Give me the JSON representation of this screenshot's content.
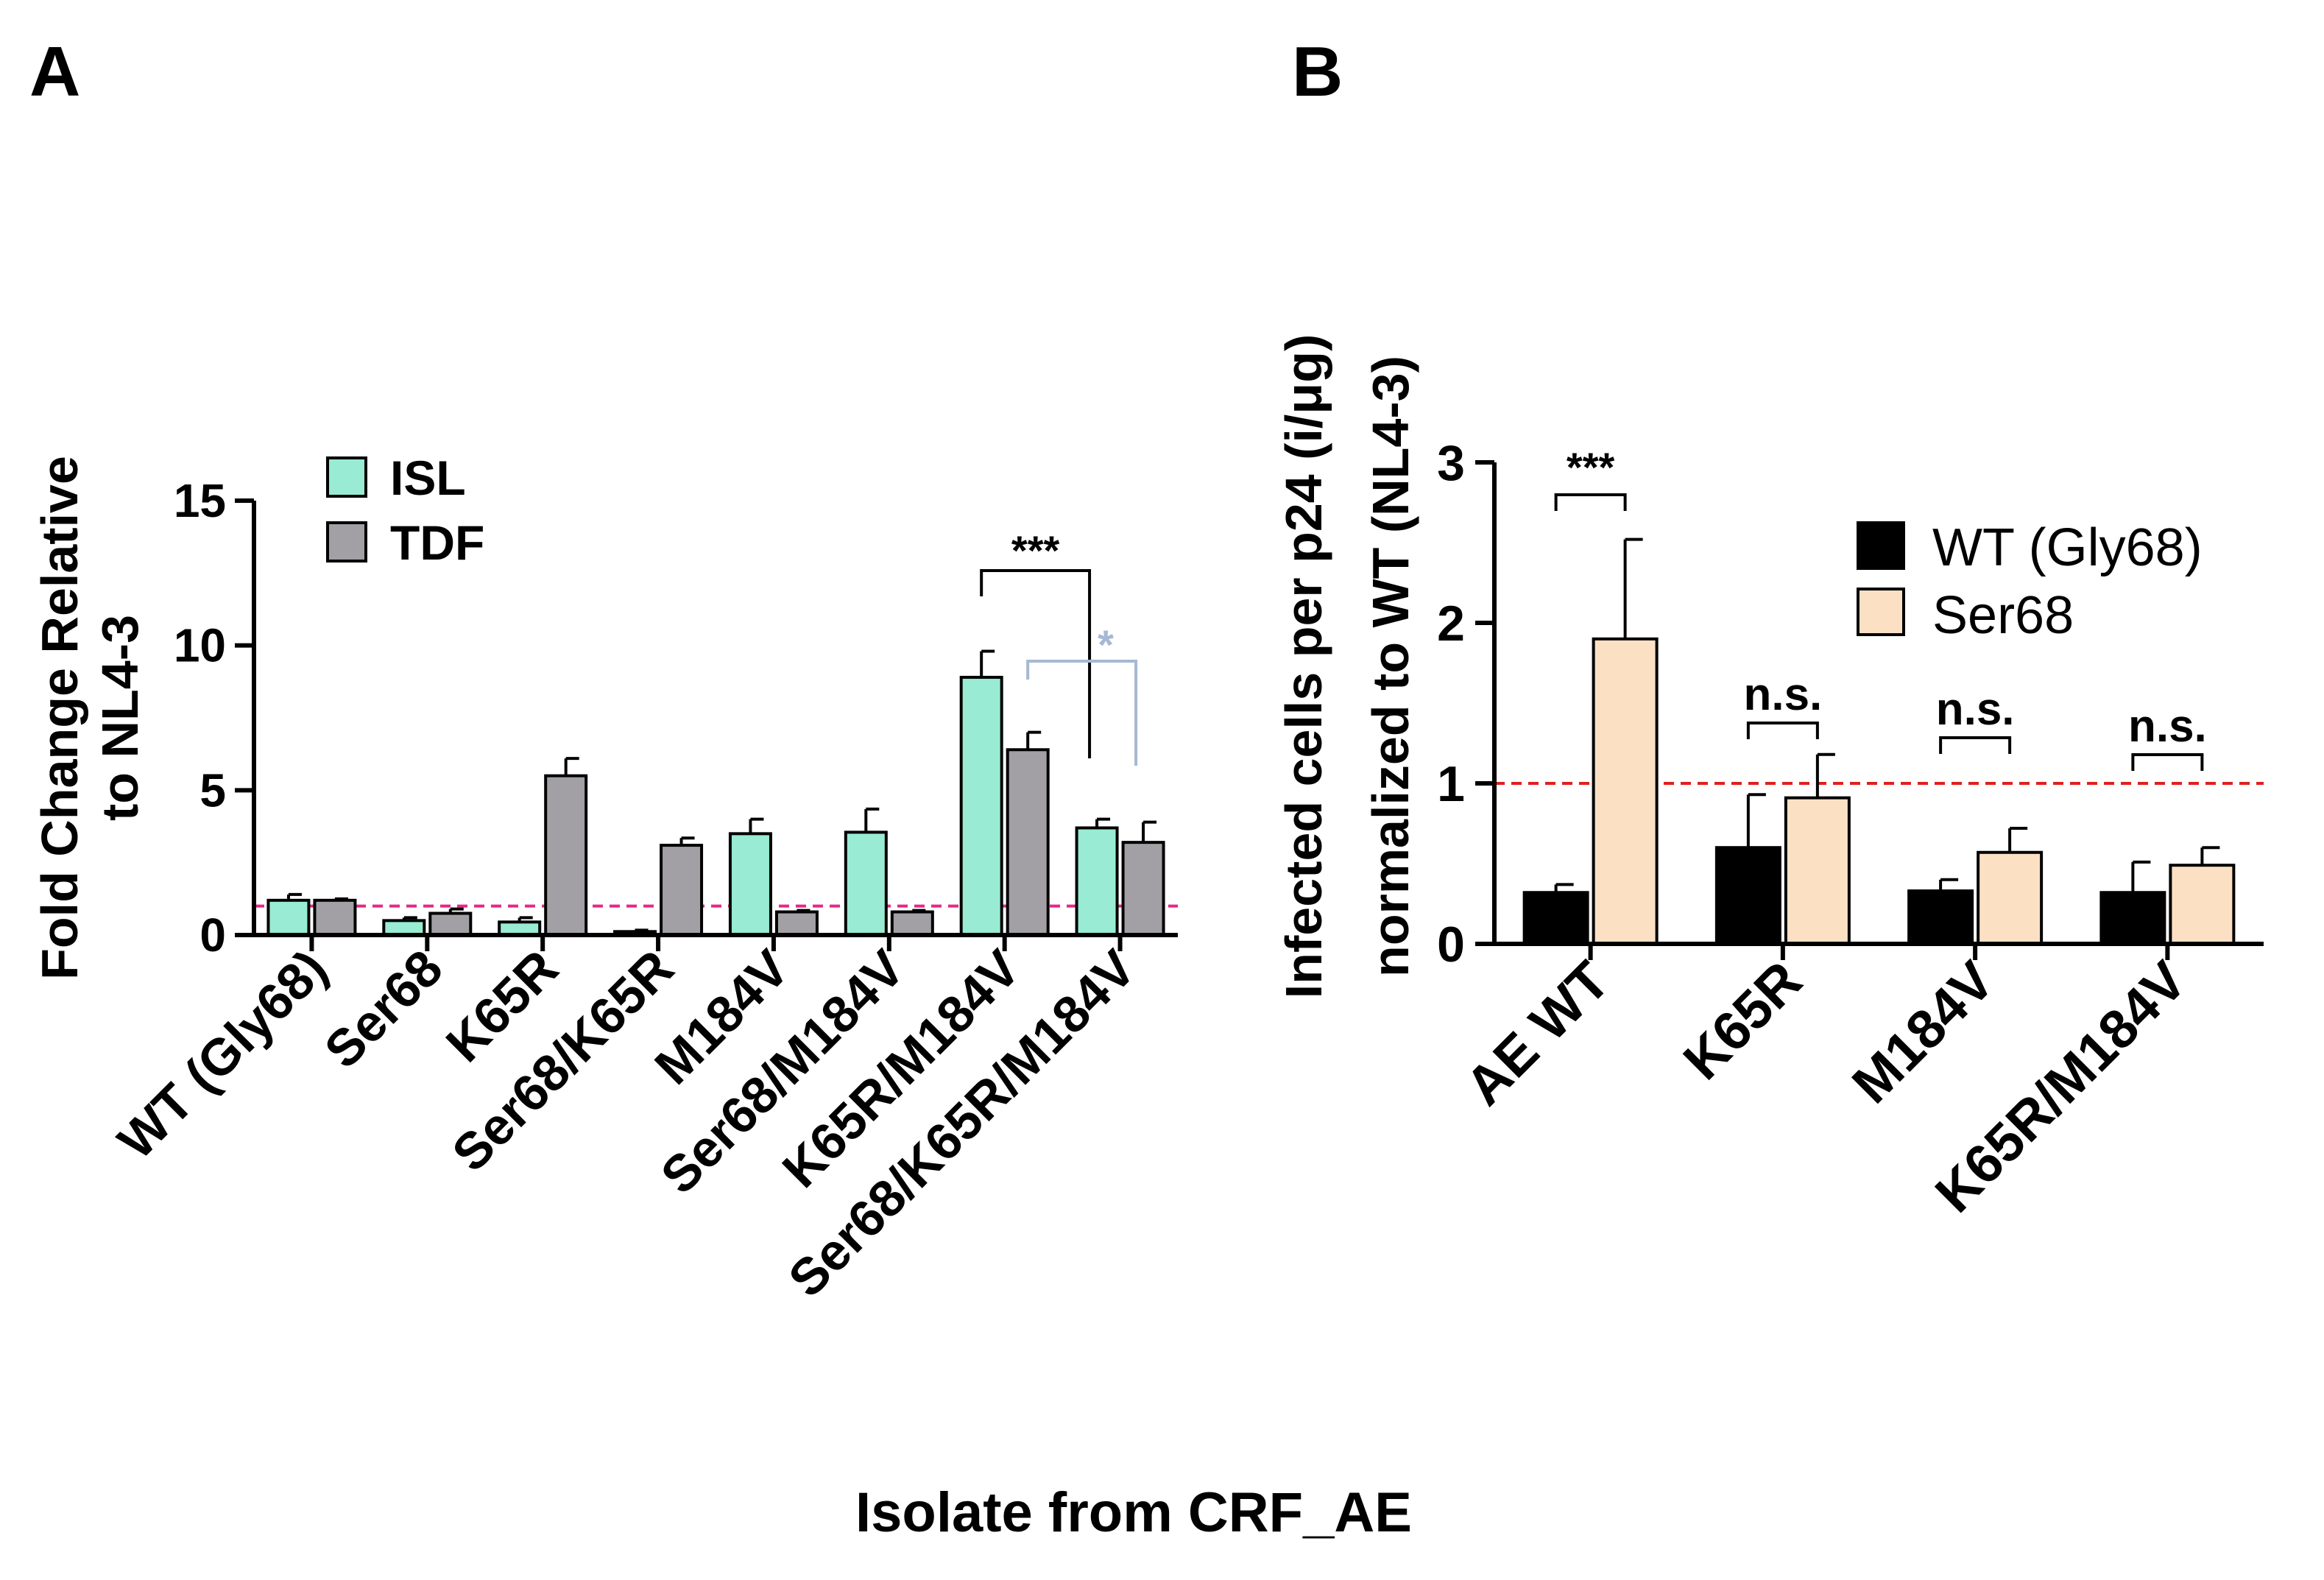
{
  "panels": {
    "a_label": "A",
    "b_label": "B",
    "shared_xlabel": "Isolate from CRF_AE"
  },
  "colors": {
    "isl": "#99ebd3",
    "tdf": "#a2a0a5",
    "wt": "#000000",
    "ser68": "#fce0c4",
    "ref_line_a": "#e8268a",
    "ref_line_b": "#e0201f",
    "sig_black": "#000000",
    "sig_blue": "#a6b8d3"
  },
  "chart_data": [
    {
      "panel": "A",
      "type": "bar",
      "title": "",
      "ylabel_lines": [
        "Fold Change Relative",
        "to NL4-3"
      ],
      "xlabel": "",
      "ylim": [
        0,
        15
      ],
      "yticks": [
        "0",
        "5",
        "10",
        "15"
      ],
      "reference_line": 1,
      "categories": [
        "WT (Gly68)",
        "Ser68",
        "K65R",
        "Ser68/K65R",
        "M184V",
        "Ser68/M184V",
        "K65R/M184V",
        "Ser68/K65R/M184V"
      ],
      "series": [
        {
          "name": "ISL",
          "values": [
            1.2,
            0.5,
            0.45,
            0.12,
            3.5,
            3.55,
            8.9,
            3.7
          ],
          "errors": [
            0.2,
            0.1,
            0.15,
            0.05,
            0.5,
            0.8,
            0.9,
            0.3
          ]
        },
        {
          "name": "TDF",
          "values": [
            1.2,
            0.75,
            5.5,
            3.1,
            0.8,
            0.8,
            6.4,
            3.2
          ],
          "errors": [
            0.05,
            0.15,
            0.6,
            0.25,
            0.05,
            0.05,
            0.6,
            0.7
          ]
        }
      ],
      "legend_position": "top-left",
      "significance": [
        {
          "label": "***",
          "color": "black"
        },
        {
          "label": "*",
          "color": "blue"
        }
      ]
    },
    {
      "panel": "B",
      "type": "bar",
      "title": "",
      "ylabel_lines": [
        "Infected cells per p24 (i/μg)",
        "normalized to WT (NL4-3)"
      ],
      "xlabel": "",
      "ylim": [
        0,
        3
      ],
      "yticks": [
        "0",
        "1",
        "2",
        "3"
      ],
      "reference_line": 1,
      "categories": [
        "AE WT",
        "K65R",
        "M184V",
        "K65R/M184V"
      ],
      "series": [
        {
          "name": "WT (Gly68)",
          "values": [
            0.32,
            0.6,
            0.33,
            0.32
          ],
          "errors": [
            0.05,
            0.33,
            0.07,
            0.19
          ]
        },
        {
          "name": "Ser68",
          "values": [
            1.9,
            0.91,
            0.57,
            0.49
          ],
          "errors": [
            0.62,
            0.27,
            0.15,
            0.11
          ]
        }
      ],
      "legend_position": "top-right",
      "significance": [
        "***",
        "n.s.",
        "n.s.",
        "n.s."
      ]
    }
  ]
}
